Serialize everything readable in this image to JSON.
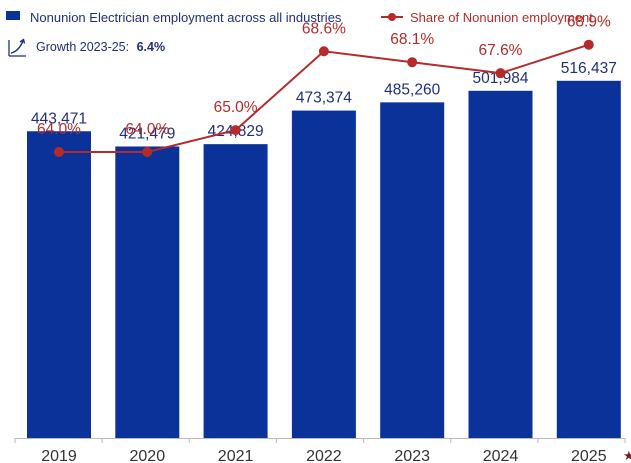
{
  "chart_data": {
    "type": "bar",
    "categories": [
      "2019",
      "2020",
      "2021",
      "2022",
      "2023",
      "2024",
      "2025"
    ],
    "series": [
      {
        "name": "Nonunion Electrician employment across all industries",
        "type": "bar",
        "values": [
          443471,
          421479,
          424829,
          473374,
          485260,
          501984,
          516437
        ],
        "labels": [
          "443,471",
          "421,479",
          "424,829",
          "473,374",
          "485,260",
          "501,984",
          "516,437"
        ],
        "color": "#0a3299"
      },
      {
        "name": "Share of Nonunion employment",
        "type": "line",
        "values": [
          64.0,
          64.0,
          65.0,
          68.6,
          68.1,
          67.6,
          68.9
        ],
        "labels": [
          "64.0%",
          "64.0%",
          "65.0%",
          "68.6%",
          "68.1%",
          "67.6%",
          "68.9%"
        ],
        "color": "#b72a2a"
      }
    ],
    "legend": {
      "position": "top",
      "bar_label": "Nonunion Electrician employment across all industries",
      "line_label": "Share of Nonunion employment"
    },
    "growth": {
      "label": "Growth 2023-25:",
      "value": "6.4%"
    },
    "star_category": "2025",
    "star_glyph": "★",
    "grid": false,
    "ylim": [
      0,
      600000
    ],
    "line_ylim": [
      52,
      72
    ]
  }
}
